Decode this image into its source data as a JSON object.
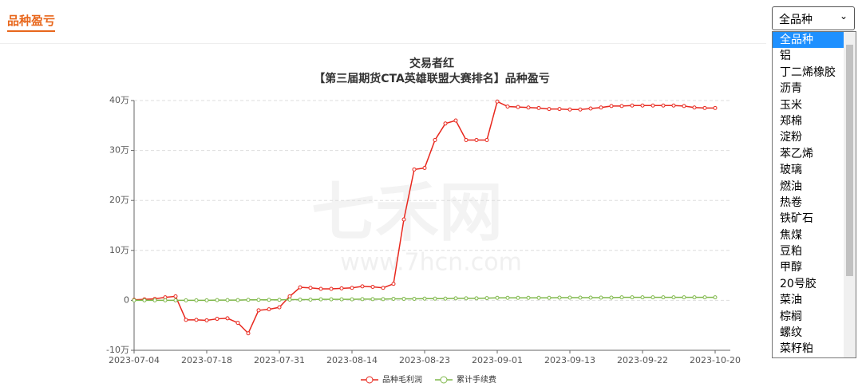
{
  "header": {
    "title": "品种盈亏"
  },
  "select": {
    "selected": "全品种",
    "options": [
      "全品种",
      "铝",
      "丁二烯橡胶",
      "沥青",
      "玉米",
      "郑棉",
      "淀粉",
      "苯乙烯",
      "玻璃",
      "燃油",
      "热卷",
      "铁矿石",
      "焦煤",
      "豆粕",
      "甲醇",
      "20号胶",
      "菜油",
      "棕榈",
      "螺纹",
      "菜籽粕"
    ]
  },
  "watermark": {
    "text": "七禾网",
    "url": "www.7hcn.com"
  },
  "chart_data": {
    "type": "line",
    "title": "交易者红",
    "subtitle": "【第三届期货CTA英雄联盟大赛排名】品种盈亏",
    "categories": [
      "2023-07-04",
      null,
      null,
      null,
      null,
      null,
      null,
      "2023-07-18",
      null,
      null,
      null,
      null,
      null,
      null,
      "2023-07-31",
      null,
      null,
      null,
      null,
      null,
      null,
      "2023-08-14",
      null,
      null,
      null,
      null,
      null,
      null,
      "2023-08-23",
      null,
      null,
      null,
      null,
      null,
      null,
      "2023-09-01",
      null,
      null,
      null,
      null,
      null,
      null,
      "2023-09-13",
      null,
      null,
      null,
      null,
      null,
      null,
      "2023-09-22",
      null,
      null,
      null,
      null,
      null,
      null,
      "2023-10-20"
    ],
    "series": [
      {
        "name": "品种毛利润",
        "color": "#e8281e",
        "values": [
          0.1,
          0.2,
          0.3,
          0.6,
          0.8,
          -3.9,
          -3.9,
          -4.0,
          -3.7,
          -3.6,
          -4.5,
          -6.6,
          -2.0,
          -1.8,
          -1.4,
          0.8,
          2.6,
          2.5,
          2.3,
          2.3,
          2.4,
          2.5,
          2.8,
          2.7,
          2.5,
          3.3,
          16.2,
          26.2,
          26.5,
          32.1,
          35.4,
          36.0,
          32.1,
          32.1,
          32.1,
          39.8,
          38.8,
          38.7,
          38.6,
          38.5,
          38.3,
          38.3,
          38.2,
          38.2,
          38.4,
          38.6,
          38.9,
          38.9,
          39.0,
          39.0,
          39.0,
          39.0,
          39.0,
          38.9,
          38.6,
          38.5,
          38.5
        ]
      },
      {
        "name": "累计手续费",
        "color": "#7fb84a",
        "values": [
          0,
          0,
          0,
          0,
          0,
          0,
          0,
          0,
          0.05,
          0.05,
          0.05,
          0.1,
          0.1,
          0.1,
          0.1,
          0.15,
          0.15,
          0.15,
          0.2,
          0.2,
          0.2,
          0.2,
          0.25,
          0.25,
          0.25,
          0.3,
          0.3,
          0.3,
          0.35,
          0.35,
          0.35,
          0.4,
          0.4,
          0.4,
          0.45,
          0.5,
          0.5,
          0.5,
          0.5,
          0.5,
          0.5,
          0.55,
          0.55,
          0.55,
          0.55,
          0.55,
          0.55,
          0.6,
          0.6,
          0.6,
          0.6,
          0.6,
          0.6,
          0.6,
          0.6,
          0.6,
          0.6
        ]
      }
    ],
    "ylim": [
      -10,
      40
    ],
    "yticks": [
      {
        "value": -10,
        "label": "-10万"
      },
      0,
      {
        "value": 10,
        "label": "10万"
      },
      {
        "value": 20,
        "label": "20万"
      },
      {
        "value": 30,
        "label": "30万"
      },
      {
        "value": 40,
        "label": "40万"
      }
    ],
    "grid": true
  }
}
